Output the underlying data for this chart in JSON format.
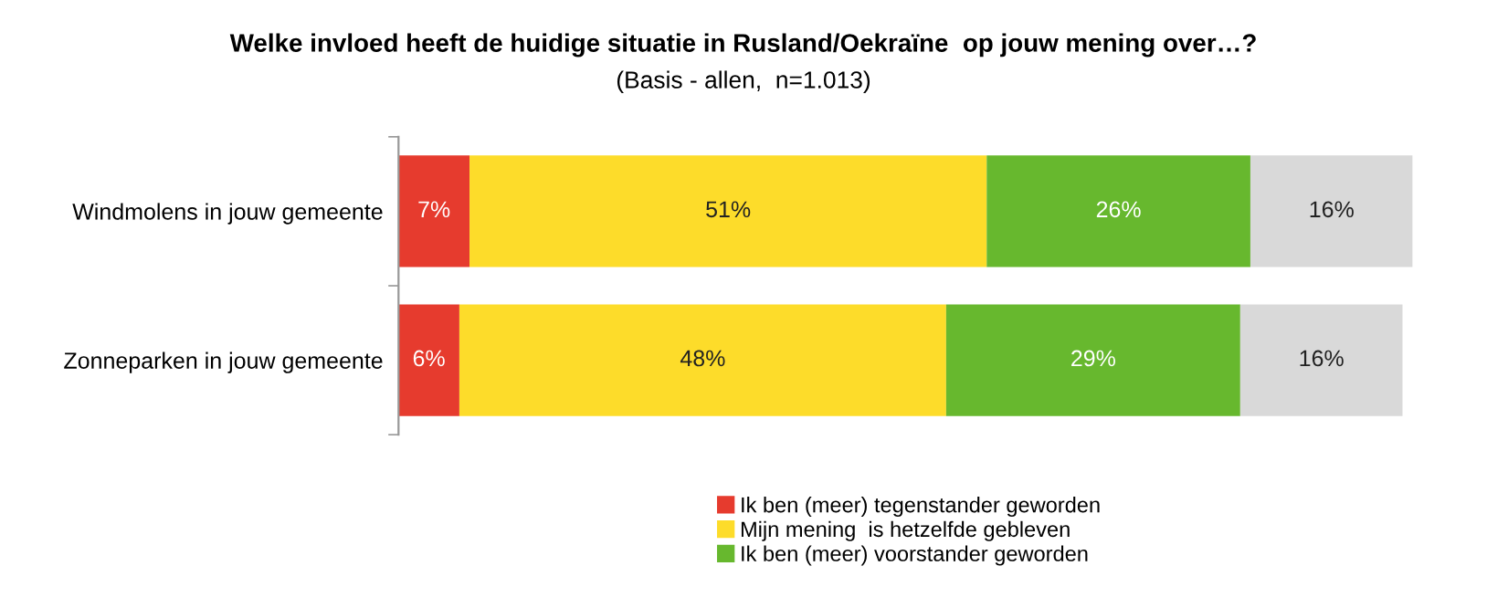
{
  "chart_data": {
    "type": "bar",
    "orientation": "horizontal",
    "stacked": true,
    "tick_labels": "y",
    "title": "Welke invloed heeft de huidige situatie in Rusland/Oekraïne  op jouw mening over…?",
    "subtitle": "(Basis - allen,  n=1.013)",
    "categories": [
      "Windmolens in jouw gemeente",
      "Zonneparken in jouw gemeente"
    ],
    "series": [
      {
        "name": "Ik ben (meer) tegenstander geworden",
        "color": "#e63b2e",
        "values": [
          7,
          6
        ],
        "value_labels": [
          "7%",
          "6%"
        ]
      },
      {
        "name": "Mijn mening  is hetzelfde gebleven",
        "color": "#fddc2a",
        "values": [
          51,
          48
        ],
        "value_labels": [
          "51%",
          "48%"
        ]
      },
      {
        "name": "Ik ben (meer) voorstander geworden",
        "color": "#67b82e",
        "values": [
          26,
          29
        ],
        "value_labels": [
          "26%",
          "29%"
        ]
      },
      {
        "color": "#d9d9d9",
        "values": [
          16,
          16
        ],
        "value_labels": [
          "16%",
          "16%"
        ]
      }
    ],
    "legend": "bottom",
    "grid": false
  }
}
